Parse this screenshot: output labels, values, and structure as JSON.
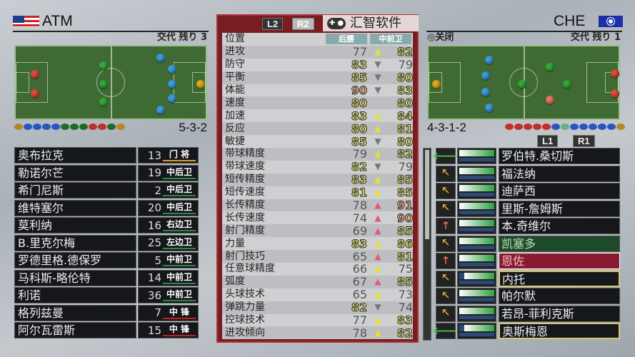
{
  "left_team": {
    "name": "ATM",
    "subs_left": "交代 残り 3",
    "formation": "5-3-2",
    "players": [
      {
        "name": "奥布拉克",
        "number": "13",
        "position": "门 将",
        "pos_color": "#d9a020"
      },
      {
        "name": "勒诺尔芒",
        "number": "19",
        "position": "中后卫",
        "pos_color": "#2a8a4a"
      },
      {
        "name": "希门尼斯",
        "number": "2",
        "position": "中后卫",
        "pos_color": "#2a8a4a"
      },
      {
        "name": "维特塞尔",
        "number": "20",
        "position": "中后卫",
        "pos_color": "#2a8a4a"
      },
      {
        "name": "莫利纳",
        "number": "16",
        "position": "右边卫",
        "pos_color": "#2a8a4a"
      },
      {
        "name": "B.里克尔梅",
        "number": "25",
        "position": "左边卫",
        "pos_color": "#2a8a4a"
      },
      {
        "name": "罗德里格.德保罗",
        "number": "5",
        "position": "中前卫",
        "pos_color": "#2a8a4a"
      },
      {
        "name": "马科斯-略伦特",
        "number": "14",
        "position": "中前卫",
        "pos_color": "#2a8a4a"
      },
      {
        "name": "利诺",
        "number": "36",
        "position": "中前卫",
        "pos_color": "#2a8a4a"
      },
      {
        "name": "格列兹曼",
        "number": "7",
        "position": "中 锋",
        "pos_color": "#c02020"
      },
      {
        "name": "阿尔瓦雷斯",
        "number": "15",
        "position": "中 锋",
        "pos_color": "#c02020"
      }
    ]
  },
  "right_team": {
    "name": "CHE",
    "close_label": "◎关闭",
    "subs_left": "交代 残り 1",
    "formation": "4-3-1-2",
    "l1": "L1",
    "r1": "R1",
    "players": [
      {
        "name": "罗伯特.桑切斯",
        "icon": "arrow-left",
        "fitness": 1.0,
        "state": ""
      },
      {
        "name": "福法纳",
        "icon": "arrow-diagonal",
        "fitness": 1.0,
        "state": ""
      },
      {
        "name": "迪萨西",
        "icon": "arrow-diagonal",
        "fitness": 1.0,
        "state": ""
      },
      {
        "name": "里斯-詹姆斯",
        "icon": "arrow-diagonal",
        "fitness": 1.0,
        "state": ""
      },
      {
        "name": "本.奇维尔",
        "icon": "arrow-up",
        "fitness": 1.0,
        "state": ""
      },
      {
        "name": "凯塞多",
        "icon": "arrow-diagonal",
        "fitness": 1.0,
        "state": "sub"
      },
      {
        "name": "恩佐",
        "icon": "arrow-up",
        "fitness": 1.0,
        "state": "sel"
      },
      {
        "name": "内托",
        "icon": "arrow-diagonal",
        "fitness": 0.85,
        "state": "mark"
      },
      {
        "name": "帕尔默",
        "icon": "arrow-diagonal",
        "fitness": 1.0,
        "state": ""
      },
      {
        "name": "若昂-菲利克斯",
        "icon": "arrow-diagonal",
        "fitness": 1.0,
        "state": ""
      },
      {
        "name": "奥斯梅恩",
        "icon": "arrow-left",
        "fitness": 0.85,
        "state": "mark"
      }
    ]
  },
  "compare": {
    "l2": "L2",
    "r2": "R2",
    "position_label": "位置",
    "left_position": "后腰",
    "right_position": "中前卫",
    "stats": [
      {
        "label": "进攻",
        "left": 77,
        "right": 82,
        "arrow": "up"
      },
      {
        "label": "防守",
        "left": 83,
        "right": 79,
        "arrow": "down"
      },
      {
        "label": "平衡",
        "left": 85,
        "right": 80,
        "arrow": "down"
      },
      {
        "label": "体能",
        "left": 90,
        "right": 83,
        "arrow": "down"
      },
      {
        "label": "速度",
        "left": 80,
        "right": 80,
        "arrow": "none"
      },
      {
        "label": "加速",
        "left": 83,
        "right": 84,
        "arrow": "up"
      },
      {
        "label": "反应",
        "left": 80,
        "right": 81,
        "arrow": "up"
      },
      {
        "label": "敏捷",
        "left": 85,
        "right": 80,
        "arrow": "down"
      },
      {
        "label": "带球精度",
        "left": 79,
        "right": 82,
        "arrow": "up"
      },
      {
        "label": "带球速度",
        "left": 82,
        "right": 79,
        "arrow": "down"
      },
      {
        "label": "短传精度",
        "left": 83,
        "right": 85,
        "arrow": "up"
      },
      {
        "label": "短传速度",
        "left": 81,
        "right": 85,
        "arrow": "up"
      },
      {
        "label": "长传精度",
        "left": 78,
        "right": 91,
        "arrow": "up-big"
      },
      {
        "label": "长传速度",
        "left": 74,
        "right": 90,
        "arrow": "up-big"
      },
      {
        "label": "射门精度",
        "left": 69,
        "right": 85,
        "arrow": "up-big"
      },
      {
        "label": "力量",
        "left": 83,
        "right": 86,
        "arrow": "up"
      },
      {
        "label": "射门技巧",
        "left": 65,
        "right": 81,
        "arrow": "up-big"
      },
      {
        "label": "任意球精度",
        "left": 66,
        "right": 75,
        "arrow": "up"
      },
      {
        "label": "弧度",
        "left": 67,
        "right": 85,
        "arrow": "up-big"
      },
      {
        "label": "头球技术",
        "left": 65,
        "right": 73,
        "arrow": "up"
      },
      {
        "label": "弹跳力量",
        "left": 82,
        "right": 74,
        "arrow": "down"
      },
      {
        "label": "控球技术",
        "left": 77,
        "right": 83,
        "arrow": "up"
      },
      {
        "label": "进攻倾向",
        "left": 78,
        "right": 82,
        "arrow": "up"
      }
    ]
  },
  "watermark": "汇智软件",
  "colors": {
    "up": "#e8e030",
    "down": "#777777",
    "up-big": "#e05a80",
    "panel": "#7a1d22"
  }
}
